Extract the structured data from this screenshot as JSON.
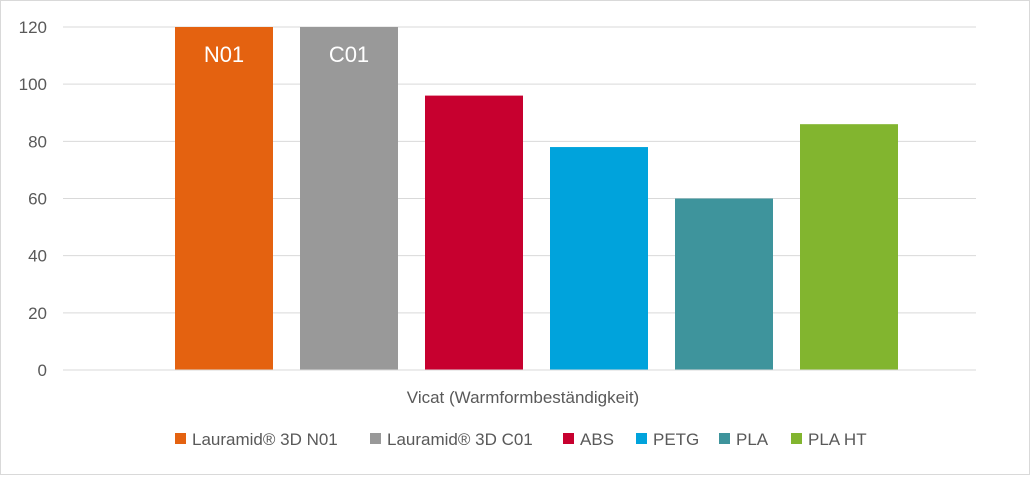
{
  "chart_data": {
    "type": "bar",
    "categories": [
      "Vicat (Warmformbeständigkeit)"
    ],
    "series": [
      {
        "name": "Lauramid® 3D N01",
        "values": [
          120
        ],
        "color": "#E46210",
        "label": "N01"
      },
      {
        "name": "Lauramid® 3D C01",
        "values": [
          120
        ],
        "color": "#999999",
        "label": "C01"
      },
      {
        "name": "ABS",
        "values": [
          96
        ],
        "color": "#C7002F",
        "label": ""
      },
      {
        "name": "PETG",
        "values": [
          78
        ],
        "color": "#00A3DC",
        "label": ""
      },
      {
        "name": "PLA",
        "values": [
          60
        ],
        "color": "#3E949C",
        "label": ""
      },
      {
        "name": "PLA HT",
        "values": [
          86
        ],
        "color": "#82B52F",
        "label": ""
      }
    ],
    "title": "",
    "xlabel": "",
    "ylabel": "",
    "ylim": [
      0,
      120
    ],
    "yticks": [
      0,
      20,
      40,
      60,
      80,
      100,
      120
    ],
    "grid": true,
    "legend_position": "bottom"
  }
}
